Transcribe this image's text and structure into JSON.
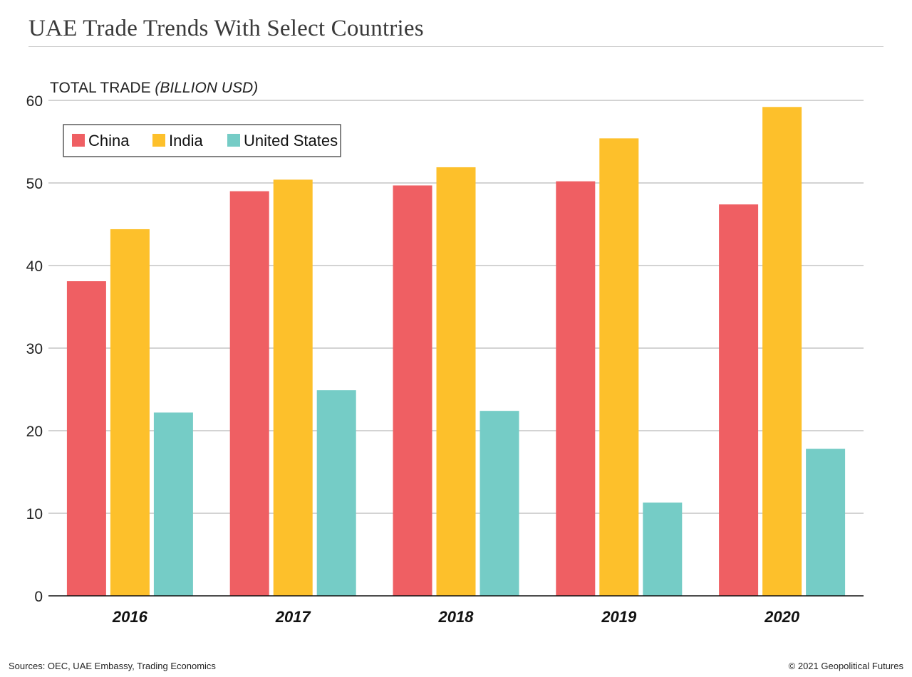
{
  "title": "UAE Trade Trends With Select Countries",
  "source": "Sources: OEC, UAE Embassy, Trading Economics",
  "credit": "© 2021 Geopolitical Futures",
  "chart_data": {
    "type": "bar",
    "title": "UAE Trade Trends With Select Countries",
    "ylabel_main": "TOTAL TRADE ",
    "ylabel_unit": "(BILLION USD)",
    "xlabel": "",
    "categories": [
      "2016",
      "2017",
      "2018",
      "2019",
      "2020"
    ],
    "series": [
      {
        "name": "China",
        "color": "#ef5f63",
        "values": [
          38.1,
          49.0,
          49.7,
          50.2,
          47.4
        ]
      },
      {
        "name": "India",
        "color": "#fdc02b",
        "values": [
          44.4,
          50.4,
          51.9,
          55.4,
          59.2
        ]
      },
      {
        "name": "United States",
        "color": "#75ccc6",
        "values": [
          22.2,
          24.9,
          22.4,
          11.3,
          17.8
        ]
      }
    ],
    "ylim": [
      0,
      60
    ],
    "yticks": [
      0,
      10,
      20,
      30,
      40,
      50,
      60
    ],
    "grid": true,
    "legend_position": "top-left"
  }
}
